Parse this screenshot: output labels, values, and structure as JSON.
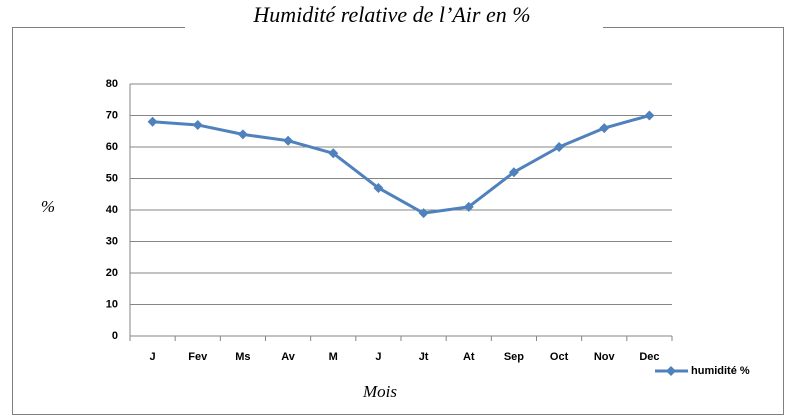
{
  "chart_data": {
    "type": "line",
    "title": "Humidité relative de l’Air en %",
    "y_label": "%",
    "x_label": "Mois",
    "categories": [
      "J",
      "Fev",
      "Ms",
      "Av",
      "M",
      "J",
      "Jt",
      "At",
      "Sep",
      "Oct",
      "Nov",
      "Dec"
    ],
    "series": [
      {
        "name": "humidité %",
        "color": "#4f81bd",
        "values": [
          68,
          67,
          64,
          62,
          58,
          47,
          39,
          41,
          52,
          60,
          66,
          70
        ]
      }
    ],
    "ylim": [
      0,
      80
    ],
    "yticks": [
      0,
      10,
      20,
      30,
      40,
      50,
      60,
      70,
      80
    ],
    "grid": true,
    "legend": "right"
  }
}
